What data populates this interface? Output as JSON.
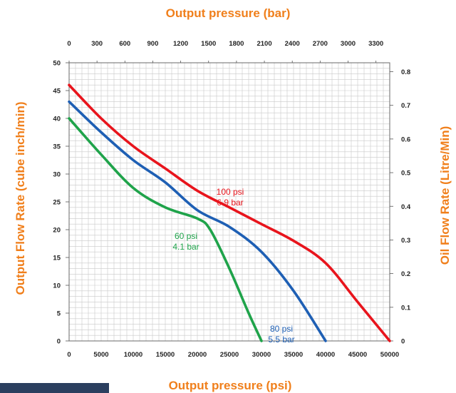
{
  "chart_data": {
    "type": "line",
    "xlabel_top": "Output pressure (bar)",
    "xlabel_bottom": "Output pressure (psi)",
    "ylabel_left": "Output Flow Rate (cube inch/min)",
    "ylabel_right": "Oil Flow Rate (Litre/Min)",
    "x_bottom_ticks": [
      "0",
      "5000",
      "10000",
      "15000",
      "20000",
      "25000",
      "30000",
      "35000",
      "40000",
      "45000",
      "50000"
    ],
    "x_top_ticks": [
      "0",
      "300",
      "600",
      "900",
      "1200",
      "1500",
      "1800",
      "2100",
      "2400",
      "2700",
      "3000",
      "3300"
    ],
    "y_left_ticks": [
      "0",
      "5",
      "10",
      "15",
      "20",
      "25",
      "30",
      "35",
      "40",
      "45",
      "50"
    ],
    "y_right_ticks": [
      "0",
      "0.1",
      "0.2",
      "0.3",
      "0.4",
      "0.5",
      "0.6",
      "0.7",
      "0.8"
    ],
    "xlim": [
      0,
      50000
    ],
    "ylim": [
      0,
      50
    ],
    "grid": true,
    "series": [
      {
        "name": "100 psi",
        "label_lines": [
          "100 psi",
          "6.9 bar"
        ],
        "color": "#e8141c",
        "x": [
          0,
          5000,
          10000,
          15000,
          20000,
          25000,
          30000,
          35000,
          40000,
          45000,
          50000
        ],
        "y": [
          46,
          40,
          35,
          31,
          27,
          24,
          21,
          18,
          14,
          7,
          0
        ]
      },
      {
        "name": "80 psi",
        "label_lines": [
          "80 psi",
          "5.5 bar"
        ],
        "color": "#1e5fb4",
        "x": [
          0,
          5000,
          10000,
          15000,
          20000,
          25000,
          30000,
          35000,
          40000
        ],
        "y": [
          43,
          37.5,
          32.5,
          28.5,
          23.5,
          20.5,
          16,
          9,
          0
        ]
      },
      {
        "name": "60 psi",
        "label_lines": [
          "60 psi",
          "4.1 bar"
        ],
        "color": "#1fa34a",
        "x": [
          0,
          5000,
          10000,
          15000,
          20000,
          22000,
          25000,
          28000,
          30000
        ],
        "y": [
          40,
          33.5,
          27.5,
          24,
          22,
          20,
          13,
          5,
          0
        ]
      }
    ]
  },
  "colors": {
    "axis_title": "#f07f1b",
    "grid": "#c9c9c9",
    "corner_band": "#2b3f5f"
  }
}
